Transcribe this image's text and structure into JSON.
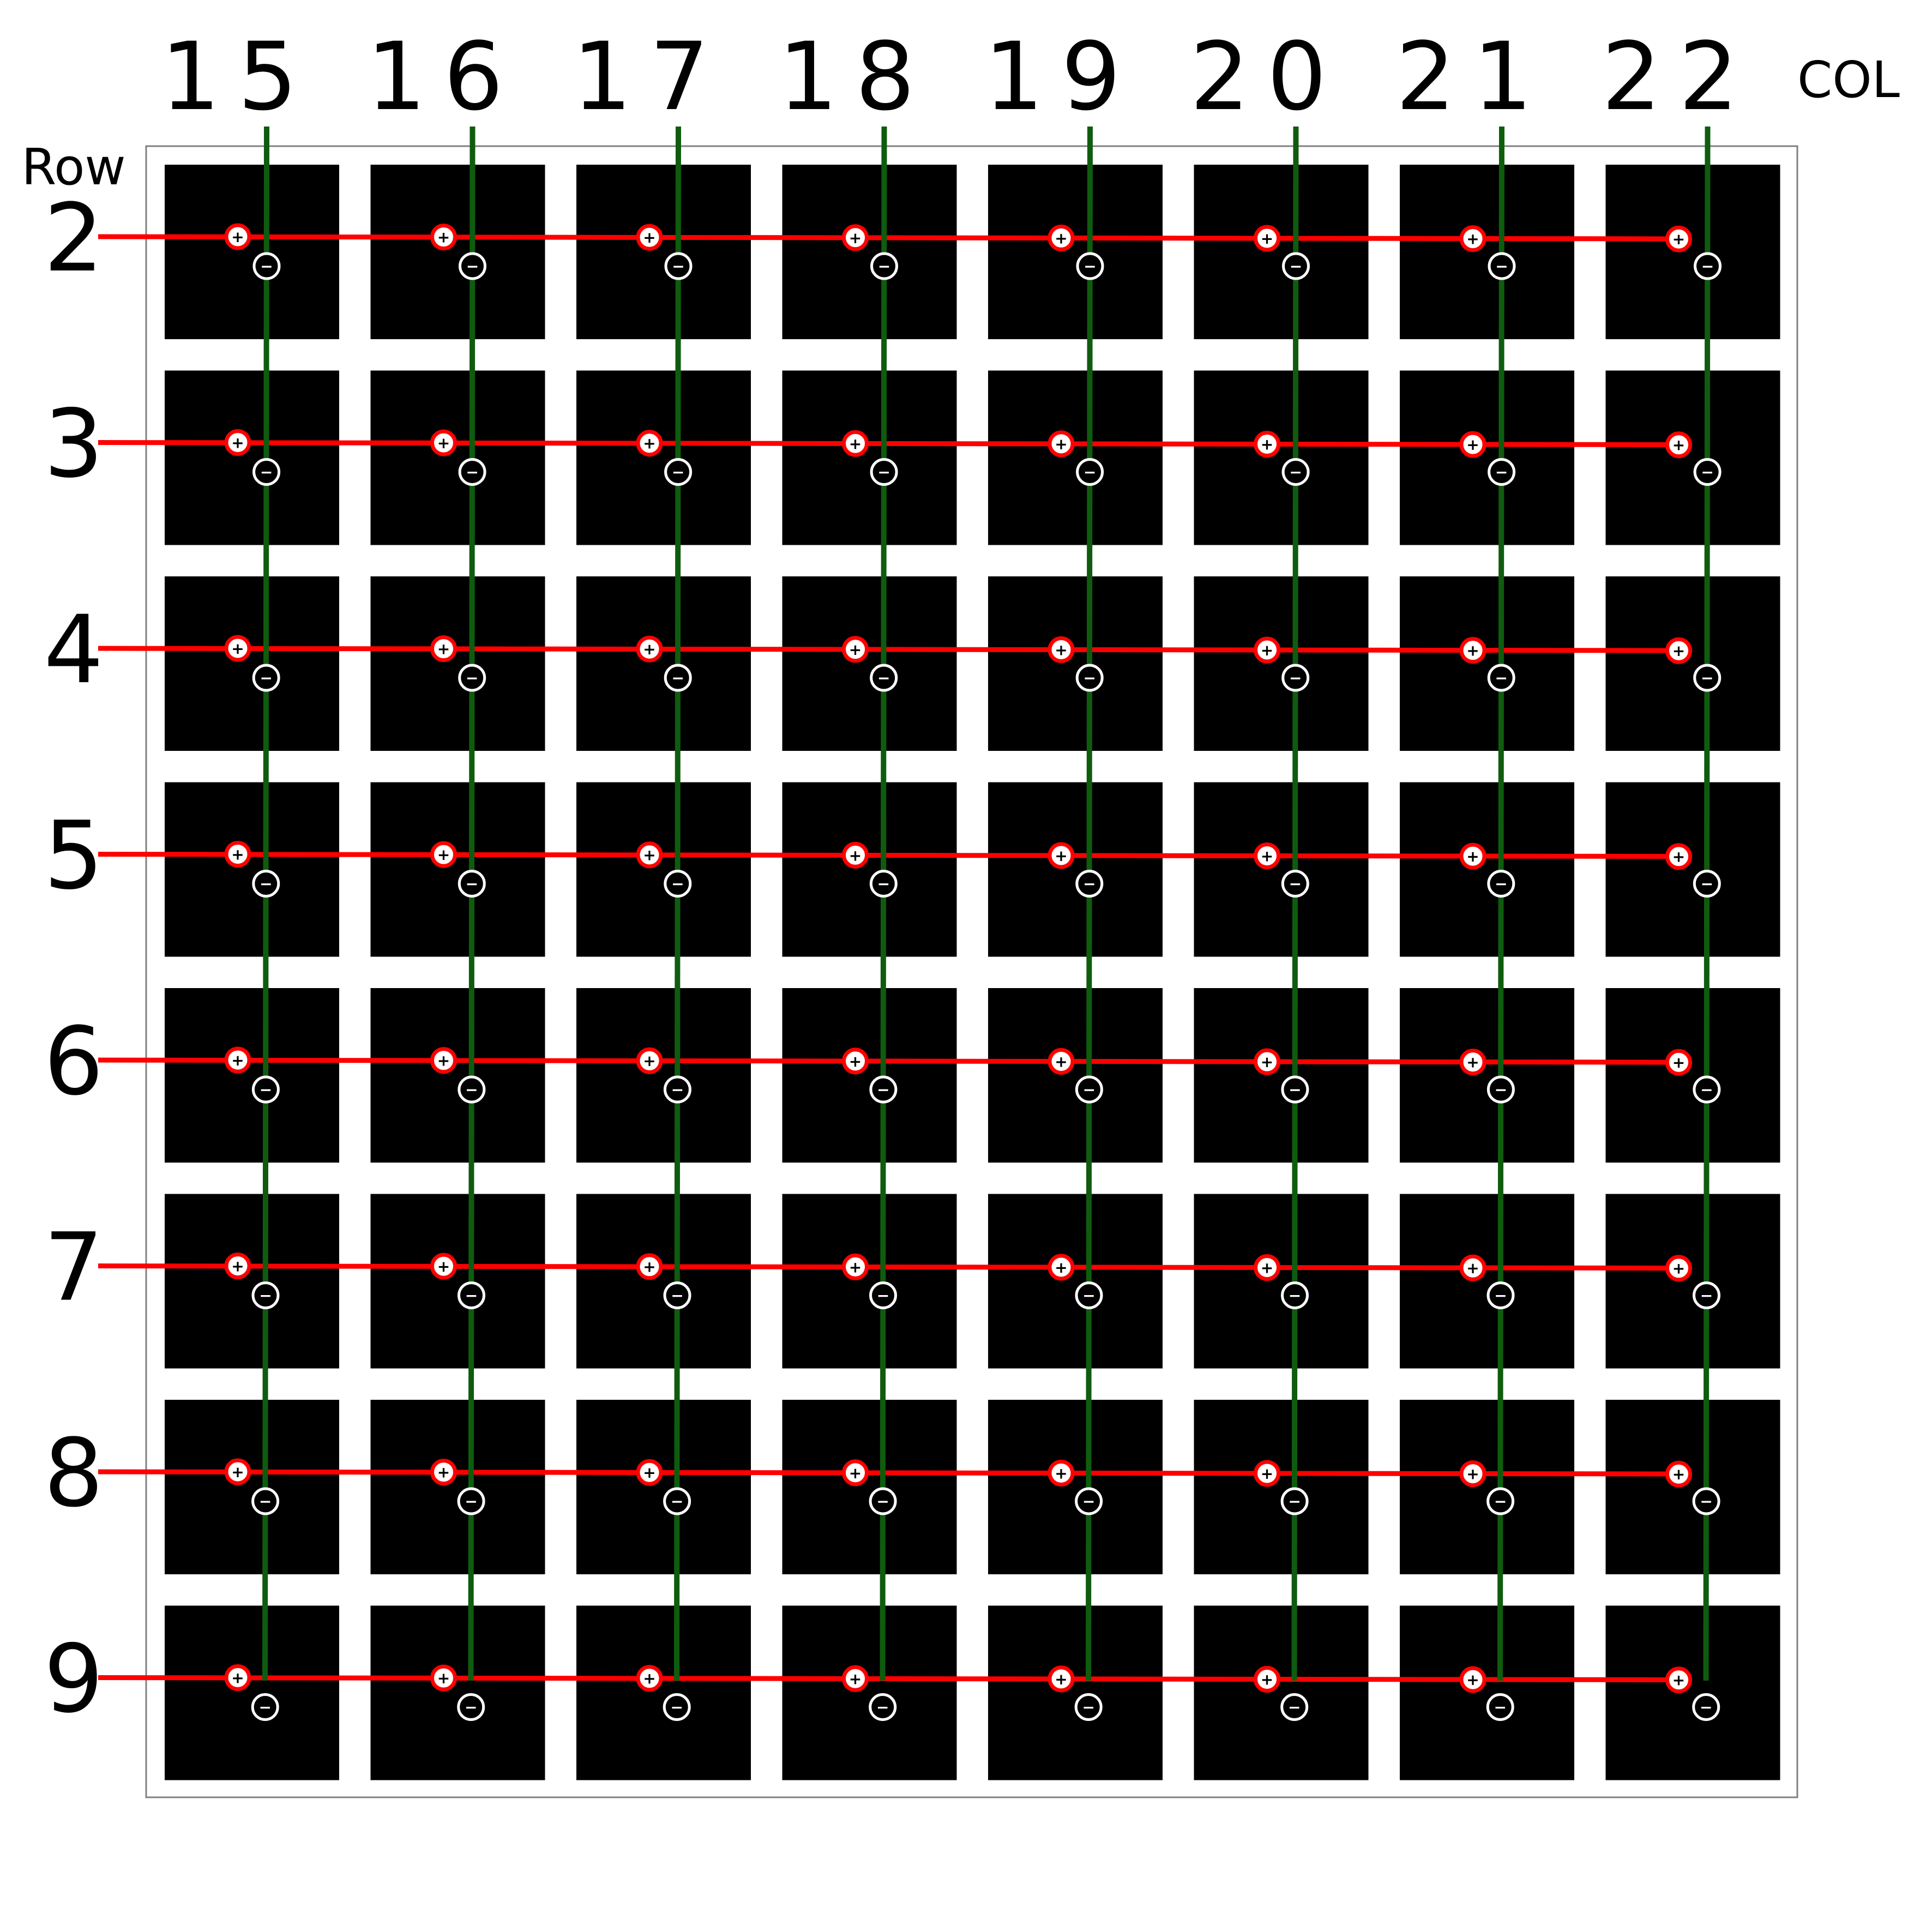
{
  "headers": {
    "row": "Row",
    "col": "COL"
  },
  "columns": [
    "15",
    "16",
    "17",
    "18",
    "19",
    "20",
    "21",
    "22"
  ],
  "rows": [
    "2",
    "3",
    "4",
    "5",
    "6",
    "7",
    "8",
    "9"
  ],
  "terminals": {
    "anode_symbol": "+",
    "cathode_symbol": "−"
  },
  "colors": {
    "led": "#000000",
    "row_wire": "#ff0000",
    "col_wire": "#0f5c0f",
    "anode_marker": "#ff0000",
    "cathode_marker": "#ffffff",
    "frame": "#808080"
  }
}
